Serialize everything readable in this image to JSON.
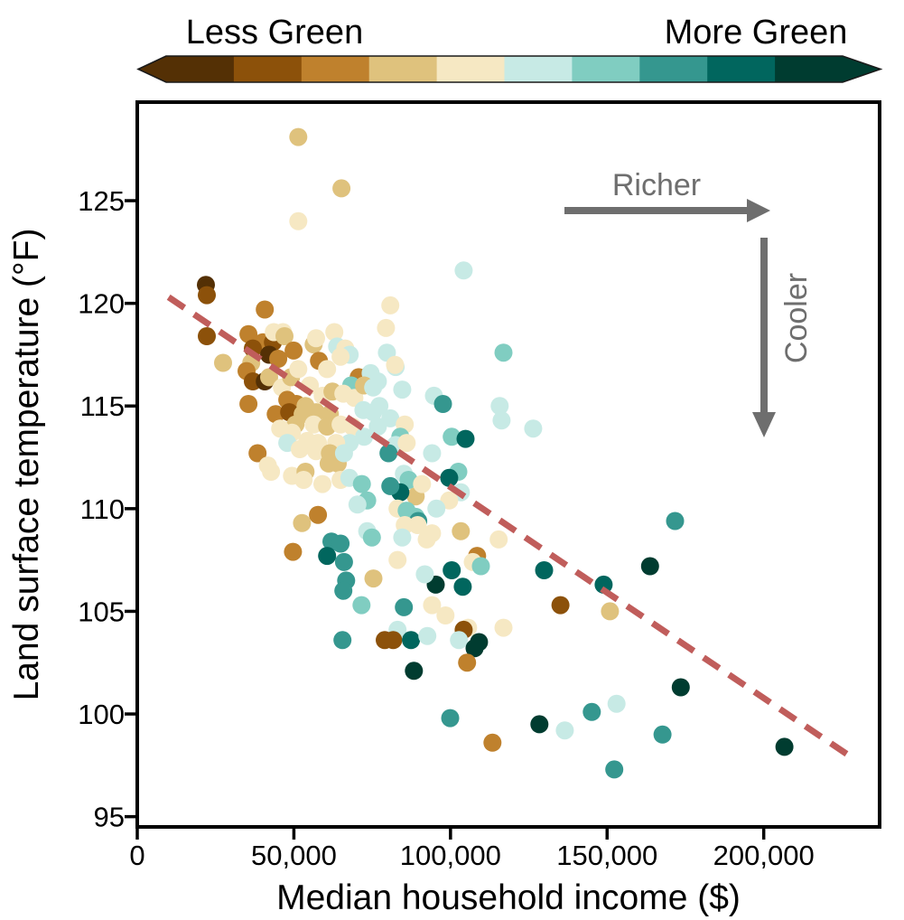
{
  "colorbar": {
    "left_label": "Less Green",
    "right_label": "More Green",
    "colors": [
      "#543005",
      "#8c510a",
      "#bf812d",
      "#dfc27d",
      "#f6e8c3",
      "#c7eae5",
      "#80cdc1",
      "#35978f",
      "#01665e",
      "#003c30"
    ],
    "outline_color": "#1a1a1a"
  },
  "chart_data": {
    "type": "scatter",
    "xlabel": "Median household income ($)",
    "ylabel": "Land surface temperature (°F)",
    "xlim": [
      0,
      237000
    ],
    "ylim": [
      94.5,
      129.8
    ],
    "grid": false,
    "x_ticks": [
      {
        "value": 0,
        "label": "0"
      },
      {
        "value": 50000,
        "label": "50,000"
      },
      {
        "value": 100000,
        "label": "100,000"
      },
      {
        "value": 150000,
        "label": "150,000"
      },
      {
        "value": 200000,
        "label": "200,000"
      }
    ],
    "y_ticks": [
      {
        "value": 95,
        "label": "95"
      },
      {
        "value": 100,
        "label": "100"
      },
      {
        "value": 105,
        "label": "105"
      },
      {
        "value": 110,
        "label": "110"
      },
      {
        "value": 115,
        "label": "115"
      },
      {
        "value": 120,
        "label": "120"
      },
      {
        "value": 125,
        "label": "125"
      }
    ],
    "palette": [
      "#543005",
      "#8c510a",
      "#bf812d",
      "#dfc27d",
      "#f6e8c3",
      "#c7eae5",
      "#80cdc1",
      "#35978f",
      "#01665e",
      "#003c30"
    ],
    "point_radius": 10,
    "trendline": {
      "style": "dashed",
      "color": "#c05d5b",
      "x1": 10000,
      "y1": 120.3,
      "x2": 227000,
      "y2": 98.0
    },
    "annotation_color": "#6e6e6e",
    "annotations": [
      {
        "text": "Richer",
        "direction": "right"
      },
      {
        "text": "Cooler",
        "direction": "down"
      }
    ],
    "points": [
      [
        51400,
        128.1,
        3
      ],
      [
        65200,
        125.6,
        3
      ],
      [
        51400,
        124.0,
        4
      ],
      [
        21900,
        120.9,
        0
      ],
      [
        22200,
        120.4,
        1
      ],
      [
        40700,
        119.7,
        2
      ],
      [
        22200,
        118.4,
        1
      ],
      [
        35500,
        118.5,
        2
      ],
      [
        40100,
        118.1,
        2
      ],
      [
        43300,
        118.1,
        1
      ],
      [
        27400,
        117.1,
        3
      ],
      [
        46500,
        118.6,
        4
      ],
      [
        43600,
        118.6,
        4
      ],
      [
        47000,
        118.4,
        3
      ],
      [
        36900,
        117.8,
        1
      ],
      [
        42100,
        117.5,
        0
      ],
      [
        45000,
        117.3,
        2
      ],
      [
        36400,
        117.1,
        3
      ],
      [
        34900,
        116.7,
        2
      ],
      [
        36900,
        116.2,
        1
      ],
      [
        40700,
        116.2,
        0
      ],
      [
        42100,
        116.4,
        3
      ],
      [
        46200,
        115.9,
        4
      ],
      [
        49100,
        116.4,
        3
      ],
      [
        49900,
        117.7,
        2
      ],
      [
        56300,
        118.0,
        3
      ],
      [
        57100,
        118.3,
        4
      ],
      [
        62900,
        118.6,
        4
      ],
      [
        63800,
        117.9,
        5
      ],
      [
        66400,
        117.8,
        4
      ],
      [
        58000,
        117.2,
        2
      ],
      [
        60600,
        116.8,
        4
      ],
      [
        67800,
        117.5,
        5
      ],
      [
        70700,
        116.4,
        2
      ],
      [
        68300,
        116.0,
        6
      ],
      [
        74500,
        116.6,
        5
      ],
      [
        76800,
        116.2,
        5
      ],
      [
        64900,
        117.4,
        4
      ],
      [
        51400,
        116.8,
        4
      ],
      [
        35500,
        115.1,
        2
      ],
      [
        47900,
        115.3,
        2
      ],
      [
        50800,
        115.1,
        2
      ],
      [
        53700,
        115.0,
        3
      ],
      [
        55100,
        116.0,
        4
      ],
      [
        59200,
        115.5,
        4
      ],
      [
        62300,
        115.7,
        3
      ],
      [
        65800,
        115.6,
        4
      ],
      [
        69300,
        115.4,
        4
      ],
      [
        72400,
        116.0,
        3
      ],
      [
        75300,
        115.9,
        5
      ],
      [
        77300,
        115.0,
        5
      ],
      [
        44200,
        114.6,
        2
      ],
      [
        48500,
        114.7,
        1
      ],
      [
        52800,
        114.6,
        3
      ],
      [
        57100,
        114.7,
        3
      ],
      [
        61500,
        114.6,
        3
      ],
      [
        50500,
        114.1,
        3
      ],
      [
        56300,
        114.1,
        4
      ],
      [
        60600,
        114.0,
        3
      ],
      [
        64900,
        114.1,
        4
      ],
      [
        68700,
        114.0,
        4
      ],
      [
        72200,
        114.8,
        5
      ],
      [
        75300,
        114.7,
        5
      ],
      [
        76800,
        114.0,
        5
      ],
      [
        72400,
        113.5,
        5
      ],
      [
        67800,
        113.2,
        5
      ],
      [
        63500,
        113.2,
        4
      ],
      [
        57700,
        113.2,
        4
      ],
      [
        54300,
        113.3,
        4
      ],
      [
        49400,
        113.7,
        4
      ],
      [
        45600,
        113.9,
        4
      ],
      [
        47900,
        113.2,
        5
      ],
      [
        51900,
        112.9,
        4
      ],
      [
        57100,
        112.8,
        4
      ],
      [
        61500,
        112.7,
        3
      ],
      [
        38400,
        112.7,
        2
      ],
      [
        42700,
        111.8,
        4
      ],
      [
        49400,
        111.6,
        4
      ],
      [
        53700,
        111.8,
        3
      ],
      [
        41700,
        112.1,
        4
      ],
      [
        64000,
        112.2,
        3
      ],
      [
        61100,
        112.2,
        3
      ],
      [
        66000,
        112.7,
        5
      ],
      [
        64900,
        111.4,
        4
      ],
      [
        59100,
        111.2,
        4
      ],
      [
        53100,
        111.4,
        4
      ],
      [
        67700,
        111.5,
        5
      ],
      [
        71700,
        111.2,
        6
      ],
      [
        73400,
        110.4,
        6
      ],
      [
        70300,
        110.2,
        5
      ],
      [
        57700,
        109.7,
        2
      ],
      [
        52600,
        109.3,
        3
      ],
      [
        49700,
        107.9,
        2
      ],
      [
        62000,
        108.4,
        7
      ],
      [
        64900,
        108.3,
        7
      ],
      [
        60600,
        107.7,
        8
      ],
      [
        66000,
        107.4,
        7
      ],
      [
        73400,
        108.9,
        5
      ],
      [
        74900,
        108.6,
        6
      ],
      [
        66700,
        106.5,
        7
      ],
      [
        65800,
        106.0,
        7
      ],
      [
        71600,
        105.3,
        6
      ],
      [
        65500,
        103.6,
        7
      ],
      [
        75400,
        106.6,
        3
      ],
      [
        79000,
        103.6,
        1
      ],
      [
        82500,
        116.9,
        5
      ],
      [
        84600,
        115.8,
        5
      ],
      [
        94700,
        115.5,
        5
      ],
      [
        97600,
        115.1,
        7
      ],
      [
        115700,
        115.0,
        5
      ],
      [
        116300,
        114.3,
        5
      ],
      [
        126400,
        113.9,
        5
      ],
      [
        80800,
        114.4,
        5
      ],
      [
        85400,
        114.1,
        4
      ],
      [
        84000,
        113.5,
        6
      ],
      [
        82500,
        113.1,
        5
      ],
      [
        86000,
        113.2,
        4
      ],
      [
        100400,
        113.5,
        6
      ],
      [
        104800,
        113.4,
        8
      ],
      [
        94100,
        112.7,
        5
      ],
      [
        80200,
        112.7,
        7
      ],
      [
        102500,
        111.8,
        6
      ],
      [
        99600,
        111.5,
        8
      ],
      [
        85100,
        111.7,
        5
      ],
      [
        86600,
        111.4,
        6
      ],
      [
        88900,
        110.6,
        3
      ],
      [
        90900,
        111.2,
        4
      ],
      [
        84000,
        110.8,
        8
      ],
      [
        80800,
        111.1,
        7
      ],
      [
        103300,
        110.8,
        5
      ],
      [
        99600,
        110.4,
        4
      ],
      [
        95500,
        110.0,
        5
      ],
      [
        83100,
        110.0,
        4
      ],
      [
        86000,
        109.9,
        6
      ],
      [
        88900,
        109.6,
        6
      ],
      [
        89700,
        109.4,
        7
      ],
      [
        85400,
        109.2,
        4
      ],
      [
        89500,
        109.2,
        4
      ],
      [
        94100,
        108.8,
        4
      ],
      [
        103300,
        108.9,
        3
      ],
      [
        84600,
        108.6,
        5
      ],
      [
        83100,
        107.5,
        4
      ],
      [
        92400,
        108.5,
        4
      ],
      [
        115400,
        108.5,
        4
      ],
      [
        108500,
        107.7,
        2
      ],
      [
        107100,
        107.4,
        4
      ],
      [
        109700,
        107.2,
        6
      ],
      [
        100400,
        107.0,
        8
      ],
      [
        95300,
        106.3,
        9
      ],
      [
        103900,
        106.2,
        8
      ],
      [
        91800,
        106.8,
        5
      ],
      [
        129900,
        107.0,
        8
      ],
      [
        148900,
        106.3,
        8
      ],
      [
        85100,
        105.2,
        7
      ],
      [
        94100,
        105.3,
        4
      ],
      [
        98400,
        104.8,
        4
      ],
      [
        105600,
        104.2,
        4
      ],
      [
        83100,
        104.1,
        5
      ],
      [
        81700,
        103.6,
        1
      ],
      [
        87400,
        103.6,
        8
      ],
      [
        92600,
        103.8,
        5
      ],
      [
        104200,
        104.1,
        1
      ],
      [
        102700,
        103.6,
        5
      ],
      [
        109100,
        103.5,
        9
      ],
      [
        107700,
        103.2,
        9
      ],
      [
        105300,
        102.5,
        2
      ],
      [
        88300,
        102.1,
        9
      ],
      [
        116900,
        104.2,
        4
      ],
      [
        135100,
        105.3,
        1
      ],
      [
        150900,
        105.0,
        3
      ],
      [
        99900,
        99.8,
        7
      ],
      [
        113400,
        98.6,
        2
      ],
      [
        128400,
        99.5,
        9
      ],
      [
        136500,
        99.2,
        5
      ],
      [
        145100,
        100.1,
        7
      ],
      [
        153000,
        100.5,
        5
      ],
      [
        152300,
        97.3,
        7
      ],
      [
        116900,
        117.6,
        6
      ],
      [
        104200,
        121.6,
        5
      ],
      [
        80800,
        119.9,
        4
      ],
      [
        79400,
        118.8,
        4
      ],
      [
        79700,
        117.6,
        5
      ],
      [
        82300,
        117.0,
        4
      ],
      [
        171700,
        109.4,
        7
      ],
      [
        163700,
        107.2,
        9
      ],
      [
        173500,
        101.3,
        9
      ],
      [
        167700,
        99.0,
        7
      ],
      [
        206600,
        98.4,
        9
      ]
    ]
  }
}
